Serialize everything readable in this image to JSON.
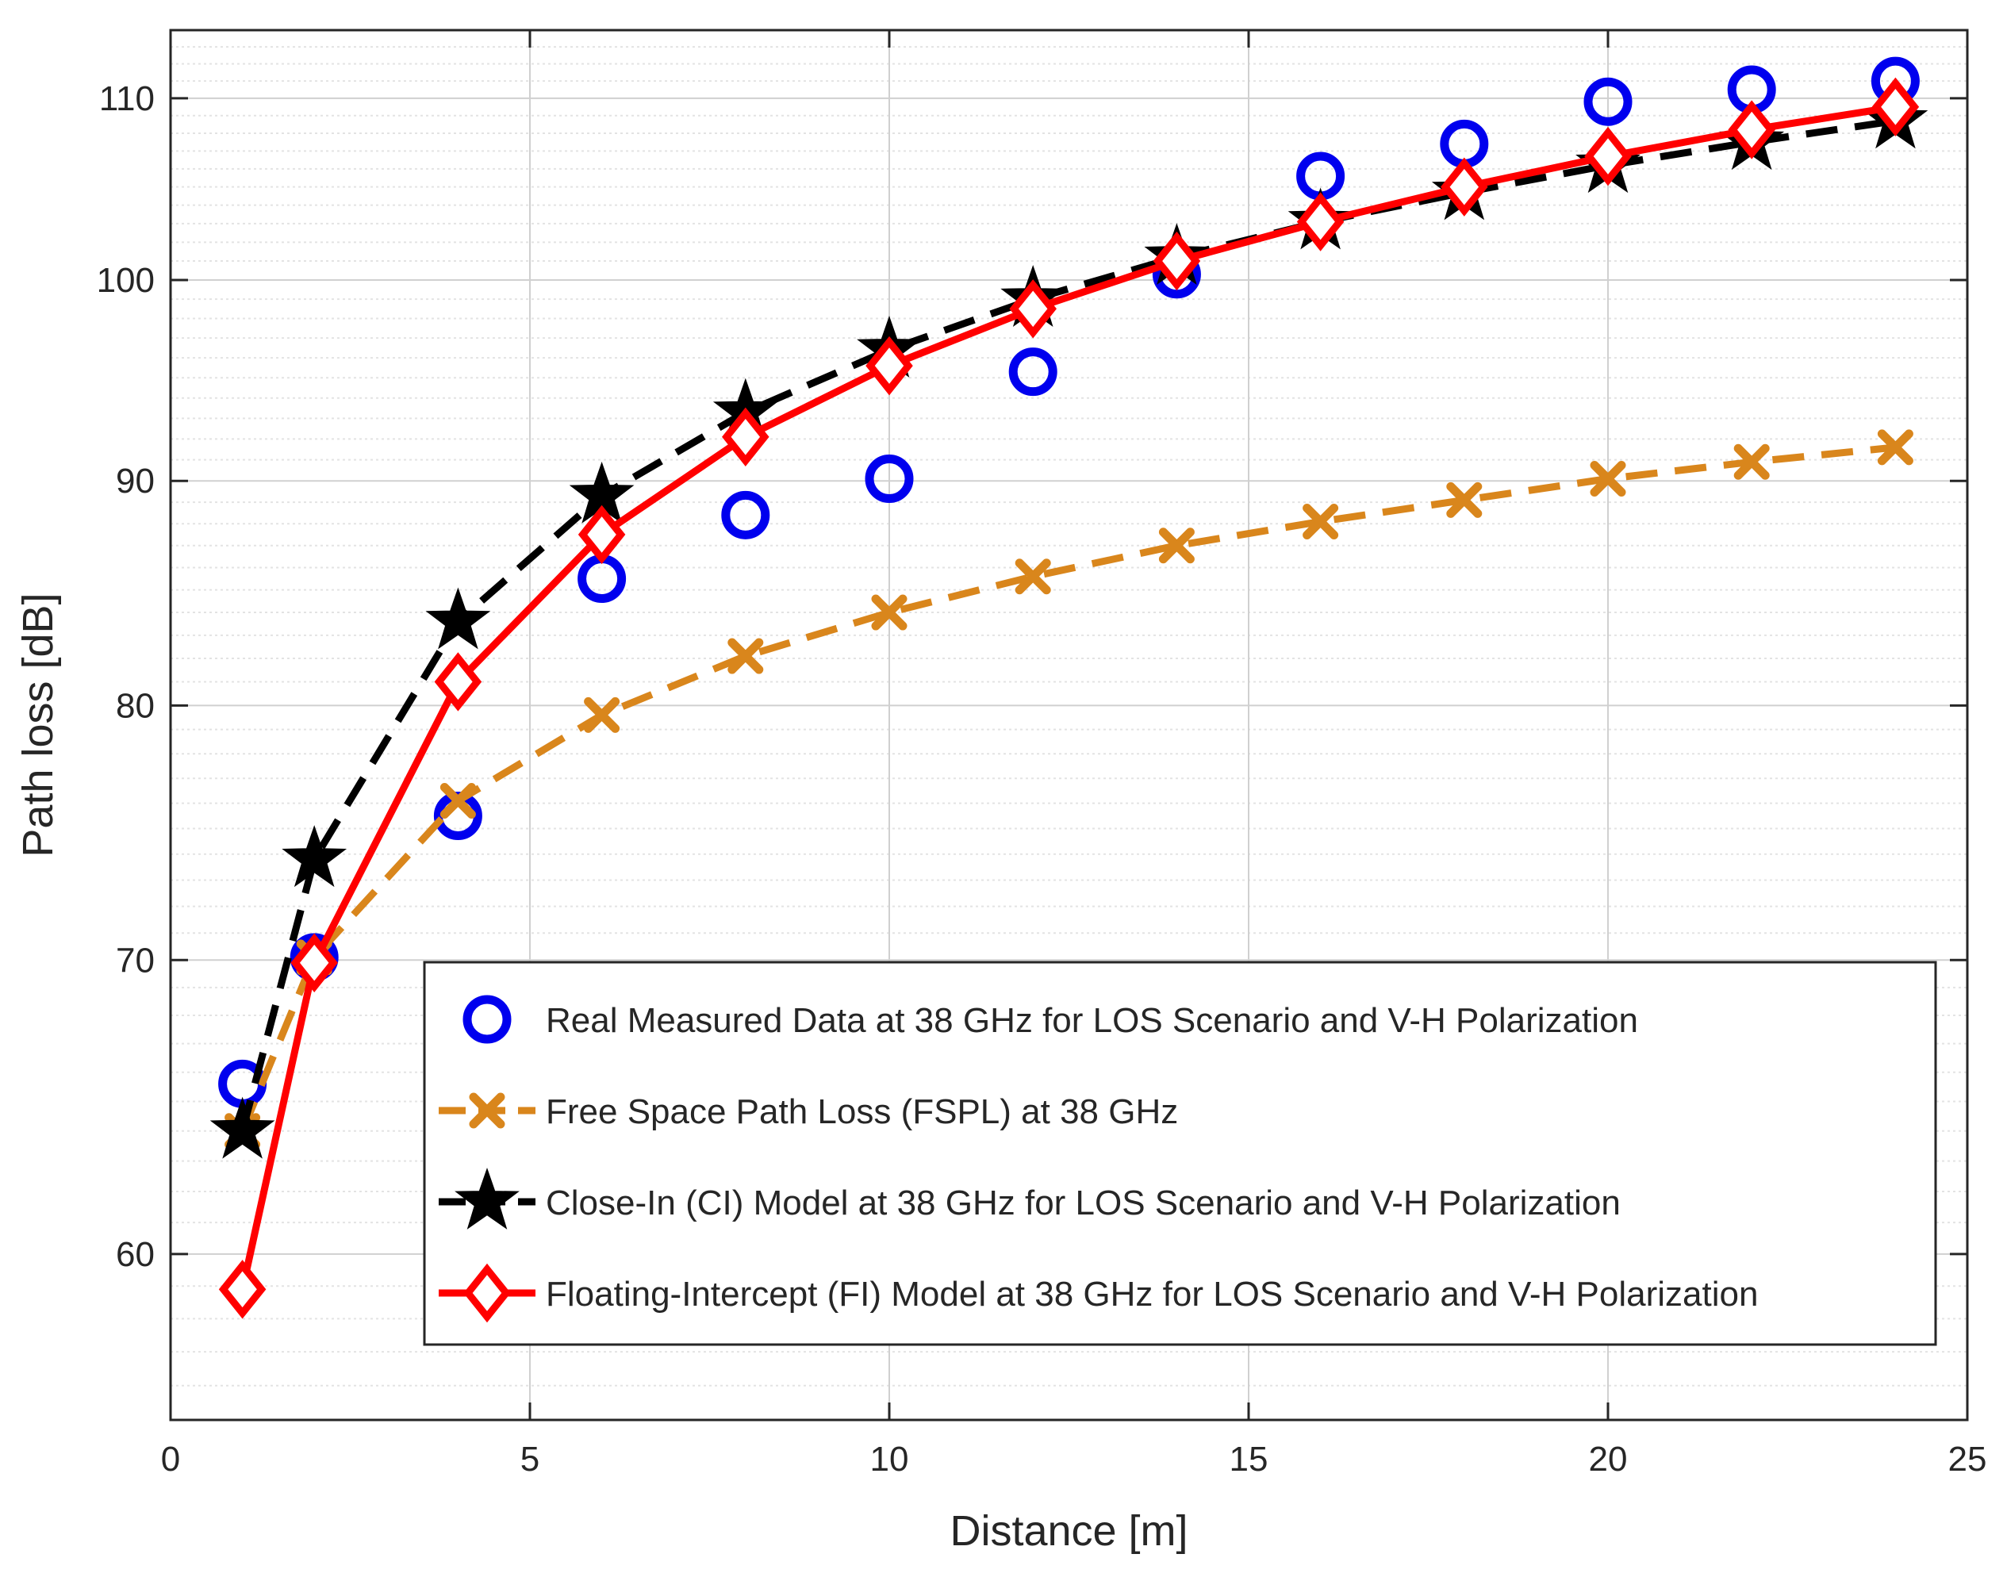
{
  "chart_data": {
    "type": "line",
    "title": "",
    "xlabel": "Distance [m]",
    "ylabel": "Path loss [dB]",
    "xlim": [
      0,
      25
    ],
    "ylim": [
      55,
      114
    ],
    "y_scale": "log",
    "xticks": [
      0,
      5,
      10,
      15,
      20,
      25
    ],
    "yticks": [
      60,
      70,
      80,
      90,
      100,
      110
    ],
    "grid": true,
    "minor_grid": true,
    "legend_position": "bottom-right",
    "colors": {
      "measured": "#0000ee",
      "fspl": "#d9861c",
      "ci": "#000000",
      "fi": "#ff0000"
    },
    "series": [
      {
        "id": "measured",
        "name": "Real Measured Data at 38 GHz for LOS Scenario and V-H Polarization",
        "style": "markers",
        "marker": "circle",
        "x": [
          1,
          2,
          4,
          6,
          8,
          10,
          12,
          14,
          16,
          18,
          20,
          22,
          24
        ],
        "y": [
          65.6,
          70.1,
          75.5,
          85.5,
          88.4,
          90.1,
          95.3,
          100.3,
          105.6,
          107.4,
          109.8,
          110.5,
          111.0
        ]
      },
      {
        "id": "fspl",
        "name": "Free Space Path Loss (FSPL) at 38 GHz",
        "style": "dashed",
        "marker": "x",
        "x": [
          1,
          2,
          4,
          6,
          8,
          10,
          12,
          14,
          16,
          18,
          20,
          22,
          24
        ],
        "y": [
          64.0,
          70.1,
          76.1,
          79.6,
          82.1,
          84.0,
          85.6,
          87.0,
          88.1,
          89.1,
          90.1,
          90.9,
          91.6
        ]
      },
      {
        "id": "ci",
        "name": "Close-In (CI) Model at 38 GHz for LOS Scenario and V-H Polarization",
        "style": "dashed",
        "marker": "star",
        "x": [
          1,
          2,
          4,
          6,
          8,
          10,
          12,
          14,
          16,
          18,
          20,
          22,
          24
        ],
        "y": [
          64.0,
          73.8,
          83.6,
          89.3,
          93.3,
          96.4,
          99.0,
          101.2,
          103.1,
          104.7,
          106.2,
          107.5,
          108.7
        ]
      },
      {
        "id": "fi",
        "name": "Floating-Intercept (FI) Model at 38 GHz for LOS Scenario and V-H Polarization",
        "style": "solid",
        "marker": "diamond",
        "x": [
          1,
          2,
          4,
          6,
          8,
          10,
          12,
          14,
          16,
          18,
          20,
          22,
          24
        ],
        "y": [
          58.9,
          69.9,
          81.0,
          87.5,
          92.1,
          95.6,
          98.5,
          101.0,
          103.1,
          105.0,
          106.7,
          108.2,
          109.5
        ]
      }
    ]
  }
}
